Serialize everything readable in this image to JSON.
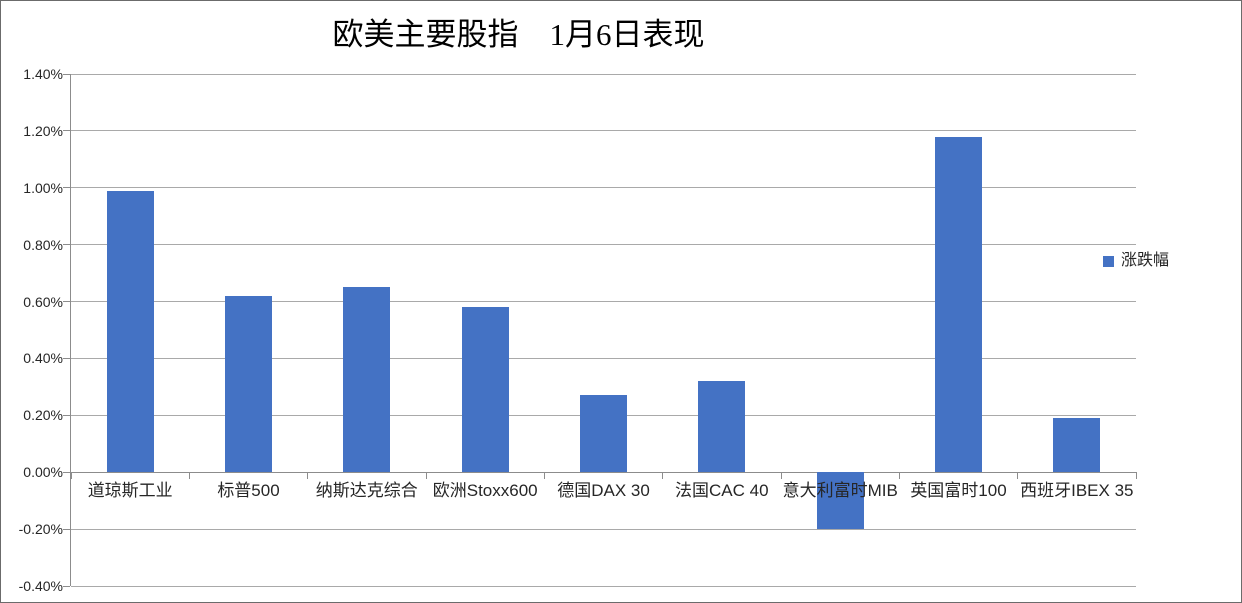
{
  "chart_data": {
    "type": "bar",
    "title": "欧美主要股指　1月6日表现",
    "categories": [
      "道琼斯工业",
      "标普500",
      "纳斯达克综合",
      "欧洲Stoxx600",
      "德国DAX 30",
      "法国CAC 40",
      "意大利富时MIB",
      "英国富时100",
      "西班牙IBEX 35"
    ],
    "series": [
      {
        "name": "涨跌幅",
        "values": [
          0.99,
          0.62,
          0.65,
          0.58,
          0.27,
          0.32,
          -0.2,
          1.18,
          0.19
        ]
      }
    ],
    "value_unit": "%",
    "ylim": [
      -0.4,
      1.4
    ],
    "yticks": [
      1.4,
      1.2,
      1.0,
      0.8,
      0.6,
      0.4,
      0.2,
      0.0,
      -0.2,
      -0.4
    ],
    "ytick_labels": [
      "1.40%",
      "1.20%",
      "1.00%",
      "0.80%",
      "0.60%",
      "0.40%",
      "0.20%",
      "0.00%",
      "-0.20%",
      "-0.40%"
    ],
    "xlabel": "",
    "ylabel": "",
    "grid": true,
    "legend": {
      "label": "涨跌幅",
      "position": "right"
    },
    "colors": {
      "bar": "#4472C4",
      "gridline": "#a9a9a9",
      "axis": "#8c8c8c",
      "text": "#262626",
      "title": "#000000",
      "background": "#ffffff",
      "canvas_border": "#6b6b6b"
    }
  }
}
